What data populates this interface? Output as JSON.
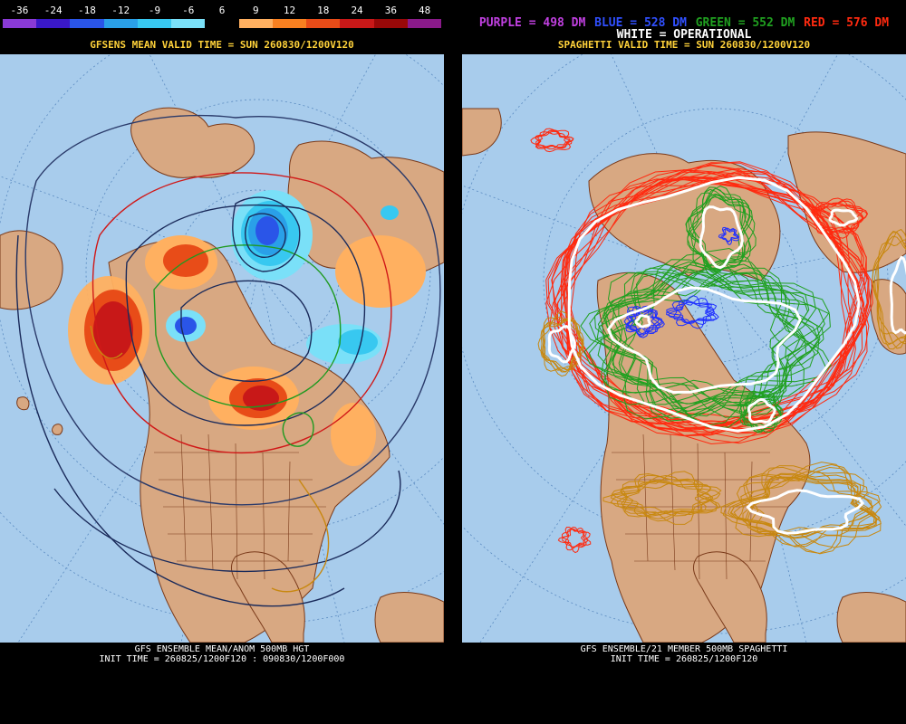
{
  "left_panel": {
    "legend": {
      "labels": [
        "-36",
        "-24",
        "-18",
        "-12",
        "-9",
        "-6",
        "6",
        "9",
        "12",
        "18",
        "24",
        "36",
        "48"
      ],
      "colors": [
        "#8a3ad6",
        "#3a18c8",
        "#2a55e8",
        "#2aa0e8",
        "#38c8f0",
        "#7ae0f8",
        "#000000",
        "#ffb060",
        "#f88020",
        "#e84c18",
        "#c81818",
        "#980808",
        "#8a1a8a"
      ]
    },
    "header": "GFSENS MEAN VALID TIME = SUN 260830/1200V120",
    "footer_line1": "GFS ENSEMBLE MEAN/ANOM 500MB HGT",
    "footer_line2": "INIT TIME = 260825/1200F120 : 090830/1200F000"
  },
  "right_panel": {
    "legend": {
      "purple": "PURPLE = 498 DM",
      "blue": "BLUE = 528 DM",
      "green": "GREEN = 552 DM",
      "red": "RED = 576 DM",
      "white": "WHITE = OPERATIONAL"
    },
    "legend_colors": {
      "purple": "#c040e0",
      "blue": "#3050ff",
      "green": "#20a020",
      "red": "#ff2a10",
      "white": "#ffffff"
    },
    "header": "SPAGHETTI VALID TIME = SUN 260830/1200V120",
    "footer_line1": "GFS ENSEMBLE/21 MEMBER 500MB SPAGHETTI",
    "footer_line2": "INIT TIME = 260825/1200F120"
  },
  "colors": {
    "ocean": "#a8ccec",
    "land": "#d8a882",
    "coast": "#7a3a1a",
    "header_text": "#ffd23a"
  }
}
